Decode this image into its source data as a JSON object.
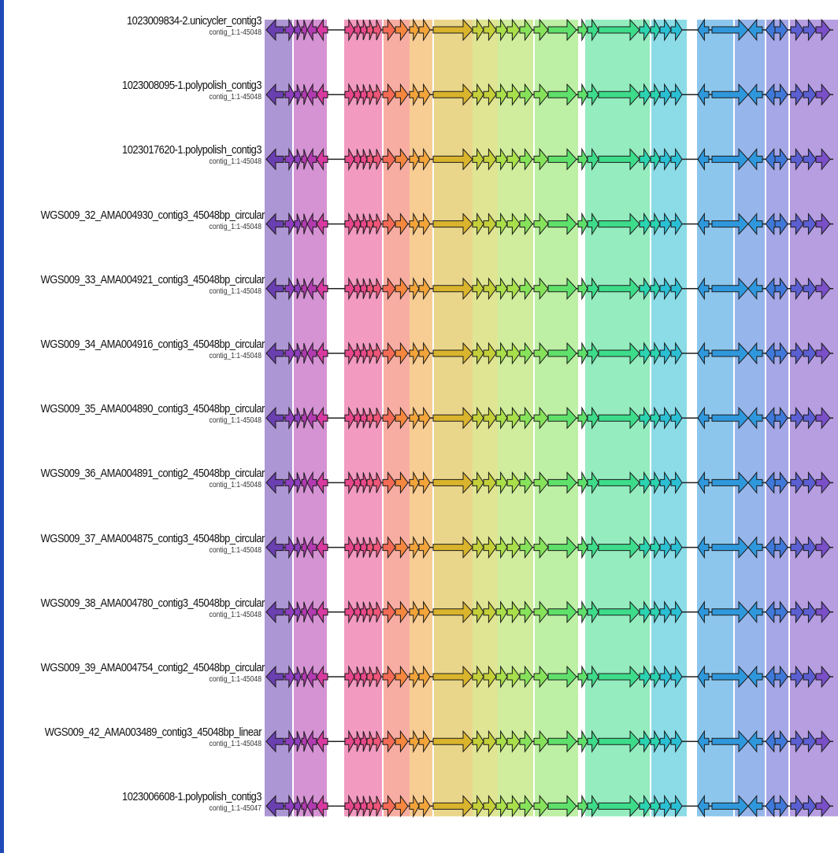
{
  "sequences": [
    {
      "name": "1023009834-2.unicycler_contig3",
      "range": "contig_1:1-45048"
    },
    {
      "name": "1023008095-1.polypolish_contig3",
      "range": "contig_1:1-45048"
    },
    {
      "name": "1023017620-1.polypolish_contig3",
      "range": "contig_1:1-45048"
    },
    {
      "name": "WGS009_32_AMA004930_contig3_45048bp_circular",
      "range": "contig_1:1-45048"
    },
    {
      "name": "WGS009_33_AMA004921_contig3_45048bp_circular",
      "range": "contig_1:1-45048"
    },
    {
      "name": "WGS009_34_AMA004916_contig3_45048bp_circular",
      "range": "contig_1:1-45048"
    },
    {
      "name": "WGS009_35_AMA004890_contig3_45048bp_circular",
      "range": "contig_1:1-45048"
    },
    {
      "name": "WGS009_36_AMA004891_contig2_45048bp_circular",
      "range": "contig_1:1-45048"
    },
    {
      "name": "WGS009_37_AMA004875_contig3_45048bp_circular",
      "range": "contig_1:1-45048"
    },
    {
      "name": "WGS009_38_AMA004780_contig3_45048bp_circular",
      "range": "contig_1:1-45048"
    },
    {
      "name": "WGS009_39_AMA004754_contig2_45048bp_circular",
      "range": "contig_1:1-45048"
    },
    {
      "name": "WGS009_42_AMA003489_contig3_45048bp_linear",
      "range": "contig_1:1-45048"
    },
    {
      "name": "1023006608-1.polypolish_contig3",
      "range": "contig_1:1-45047"
    }
  ],
  "colors": {
    "accent_bar": "#1f49b6",
    "backbone": "#222222",
    "palette": [
      "#6a3fb0",
      "#8d3fbf",
      "#b23bb0",
      "#d83aa0",
      "#e8478b",
      "#f0567a",
      "#f36a55",
      "#f5883e",
      "#f2a43a",
      "#d9b42c",
      "#c4cf3a",
      "#a8df4a",
      "#86e25a",
      "#5fe06a",
      "#3ddc8a",
      "#2bd3b0",
      "#2bbfd3",
      "#2f98dc",
      "#3f78d8",
      "#5b5fd2",
      "#7a4fc8"
    ]
  }
}
